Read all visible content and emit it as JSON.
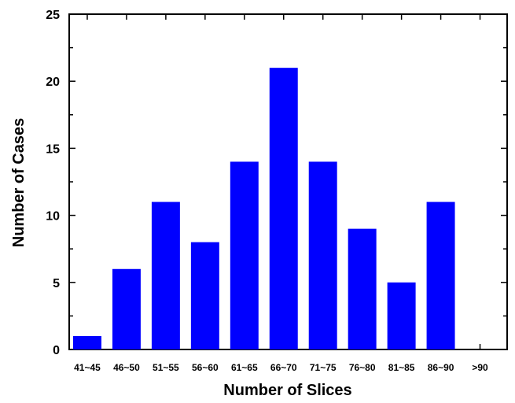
{
  "chart_data": {
    "type": "bar",
    "categories": [
      "41~45",
      "46~50",
      "51~55",
      "56~60",
      "61~65",
      "66~70",
      "71~75",
      "76~80",
      "81~85",
      "86~90",
      ">90"
    ],
    "values": [
      1,
      6,
      11,
      8,
      14,
      21,
      14,
      9,
      5,
      11,
      0
    ],
    "xlabel": "Number of Slices",
    "ylabel": "Number of Cases",
    "ylim": [
      0,
      25
    ],
    "yticks": [
      0,
      5,
      10,
      15,
      20,
      25
    ],
    "grid": false,
    "bar_color": "#0000ff"
  }
}
